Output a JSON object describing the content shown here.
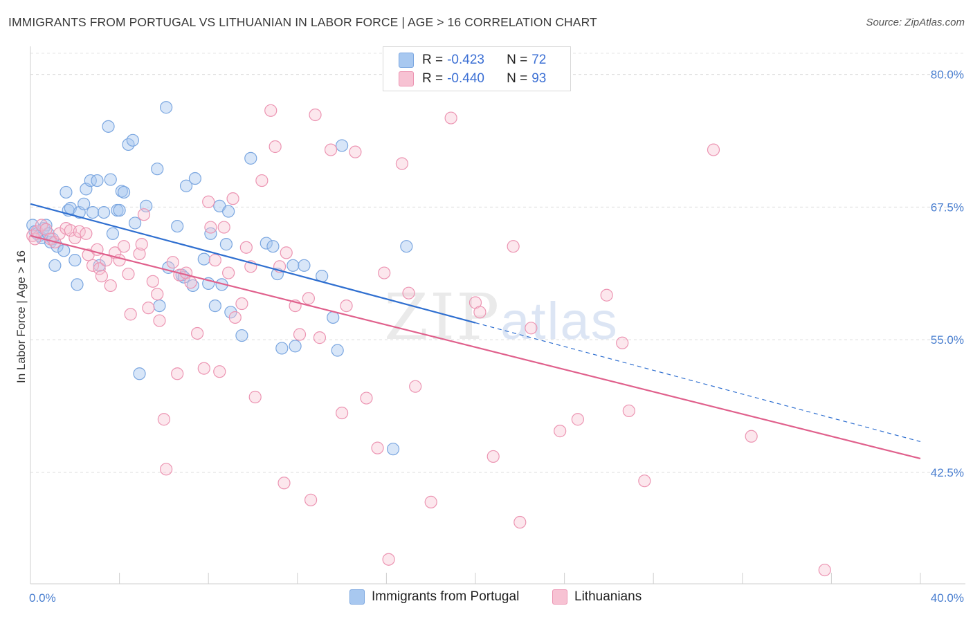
{
  "title": "IMMIGRANTS FROM PORTUGAL VS LITHUANIAN IN LABOR FORCE | AGE > 16 CORRELATION CHART",
  "source": "Source: ZipAtlas.com",
  "watermark": {
    "zip": "ZIP",
    "atlas": "atlas"
  },
  "legend": {
    "rows": [
      {
        "r_label": "R =",
        "r_value": "-0.423",
        "n_label": "N =",
        "n_value": "72",
        "color": "#a8c8f0",
        "border": "#7aa6e0"
      },
      {
        "r_label": "R =",
        "r_value": "-0.440",
        "n_label": "N =",
        "n_value": "93",
        "color": "#f7c2d3",
        "border": "#ec94b2"
      }
    ]
  },
  "bottom_legend": [
    {
      "label": "Immigrants from Portugal",
      "color": "#a8c8f0",
      "border": "#7aa6e0"
    },
    {
      "label": "Lithuanians",
      "color": "#f7c2d3",
      "border": "#ec94b2"
    }
  ],
  "chart_data": {
    "type": "scatter",
    "title": "IMMIGRANTS FROM PORTUGAL VS LITHUANIAN IN LABOR FORCE | AGE > 16 CORRELATION CHART",
    "xlabel": "",
    "ylabel": "In Labor Force | Age > 16",
    "xlim": [
      0,
      40
    ],
    "ylim": [
      32.0,
      82.0
    ],
    "x_tick_labels": [
      {
        "value": 0,
        "label": "0.0%"
      },
      {
        "value": 40,
        "label": "40.0%"
      }
    ],
    "y_ticks": [
      {
        "value": 80.0,
        "label": "80.0%"
      },
      {
        "value": 67.5,
        "label": "67.5%"
      },
      {
        "value": 55.0,
        "label": "55.0%"
      },
      {
        "value": 42.5,
        "label": "42.5%"
      }
    ],
    "grid": true,
    "series": [
      {
        "name": "Immigrants from Portugal",
        "color": "#7aa6e0",
        "fill": "rgba(168,200,240,0.45)",
        "trend": {
          "x0": 0,
          "y0": 67.8,
          "x1": 20,
          "y1": 56.6,
          "dash_to_x": 40,
          "dash_to_y": 45.4,
          "color": "#2f6fd0"
        },
        "points": [
          [
            0.1,
            65.8
          ],
          [
            0.2,
            65.2
          ],
          [
            0.3,
            65.0
          ],
          [
            0.4,
            64.8
          ],
          [
            0.5,
            64.6
          ],
          [
            0.6,
            65.5
          ],
          [
            0.7,
            65.8
          ],
          [
            0.8,
            65.0
          ],
          [
            0.9,
            64.2
          ],
          [
            1.0,
            64.5
          ],
          [
            1.1,
            62.0
          ],
          [
            1.2,
            63.8
          ],
          [
            1.5,
            63.4
          ],
          [
            1.6,
            68.9
          ],
          [
            1.7,
            67.2
          ],
          [
            1.8,
            67.4
          ],
          [
            2.0,
            62.5
          ],
          [
            2.1,
            60.2
          ],
          [
            2.2,
            67.0
          ],
          [
            2.4,
            67.8
          ],
          [
            2.5,
            69.2
          ],
          [
            2.7,
            70.0
          ],
          [
            2.8,
            67.0
          ],
          [
            3.0,
            70.0
          ],
          [
            3.1,
            62.0
          ],
          [
            3.3,
            67.0
          ],
          [
            3.5,
            75.1
          ],
          [
            3.6,
            70.1
          ],
          [
            3.7,
            65.0
          ],
          [
            3.9,
            67.2
          ],
          [
            4.0,
            67.2
          ],
          [
            4.1,
            69.0
          ],
          [
            4.2,
            68.9
          ],
          [
            4.4,
            73.4
          ],
          [
            4.6,
            73.8
          ],
          [
            4.7,
            66.0
          ],
          [
            4.9,
            51.8
          ],
          [
            5.2,
            67.6
          ],
          [
            5.7,
            71.1
          ],
          [
            5.8,
            58.2
          ],
          [
            6.1,
            76.9
          ],
          [
            6.2,
            61.8
          ],
          [
            6.6,
            65.7
          ],
          [
            6.8,
            61.1
          ],
          [
            6.9,
            60.9
          ],
          [
            7.0,
            69.5
          ],
          [
            7.3,
            60.1
          ],
          [
            7.4,
            70.2
          ],
          [
            7.8,
            62.6
          ],
          [
            8.0,
            60.3
          ],
          [
            8.1,
            65.0
          ],
          [
            8.3,
            58.2
          ],
          [
            8.5,
            67.6
          ],
          [
            8.6,
            60.2
          ],
          [
            8.9,
            67.1
          ],
          [
            8.8,
            64.0
          ],
          [
            9.0,
            57.6
          ],
          [
            9.5,
            55.4
          ],
          [
            9.9,
            72.1
          ],
          [
            10.6,
            64.1
          ],
          [
            10.9,
            63.8
          ],
          [
            11.1,
            61.2
          ],
          [
            11.3,
            54.2
          ],
          [
            11.9,
            54.4
          ],
          [
            11.8,
            62.0
          ],
          [
            12.3,
            62.0
          ],
          [
            13.1,
            61.0
          ],
          [
            13.6,
            57.1
          ],
          [
            13.8,
            54.0
          ],
          [
            14.0,
            73.3
          ],
          [
            16.9,
            63.8
          ],
          [
            16.3,
            44.7
          ]
        ]
      },
      {
        "name": "Lithuanians",
        "color": "#ec94b2",
        "fill": "rgba(247,194,211,0.40)",
        "trend": {
          "x0": 0,
          "y0": 64.8,
          "x1": 40,
          "y1": 43.8,
          "color": "#e0608c"
        },
        "points": [
          [
            0.1,
            64.8
          ],
          [
            0.2,
            64.5
          ],
          [
            0.3,
            65.2
          ],
          [
            0.5,
            65.8
          ],
          [
            0.7,
            65.4
          ],
          [
            0.9,
            64.5
          ],
          [
            1.1,
            64.2
          ],
          [
            1.3,
            65.0
          ],
          [
            1.6,
            65.5
          ],
          [
            1.8,
            65.3
          ],
          [
            2.0,
            64.6
          ],
          [
            2.2,
            65.2
          ],
          [
            2.5,
            65.0
          ],
          [
            2.6,
            63.0
          ],
          [
            2.8,
            62.0
          ],
          [
            3.0,
            63.5
          ],
          [
            3.1,
            61.7
          ],
          [
            3.2,
            61.0
          ],
          [
            3.4,
            62.5
          ],
          [
            3.6,
            60.1
          ],
          [
            3.8,
            63.2
          ],
          [
            4.0,
            62.5
          ],
          [
            4.2,
            63.8
          ],
          [
            4.4,
            61.2
          ],
          [
            4.5,
            57.4
          ],
          [
            4.9,
            63.1
          ],
          [
            5.1,
            66.8
          ],
          [
            5.3,
            58.0
          ],
          [
            5.5,
            60.5
          ],
          [
            5.7,
            59.3
          ],
          [
            5.8,
            56.8
          ],
          [
            6.0,
            47.5
          ],
          [
            6.1,
            42.8
          ],
          [
            6.4,
            62.3
          ],
          [
            6.6,
            51.8
          ],
          [
            6.7,
            61.1
          ],
          [
            7.0,
            61.3
          ],
          [
            7.2,
            60.4
          ],
          [
            7.5,
            55.6
          ],
          [
            7.8,
            52.3
          ],
          [
            8.0,
            68.0
          ],
          [
            8.1,
            65.6
          ],
          [
            8.3,
            62.5
          ],
          [
            8.5,
            52.0
          ],
          [
            8.7,
            65.6
          ],
          [
            8.9,
            61.3
          ],
          [
            9.1,
            68.3
          ],
          [
            9.2,
            57.1
          ],
          [
            9.5,
            58.4
          ],
          [
            9.7,
            63.7
          ],
          [
            9.9,
            61.9
          ],
          [
            10.1,
            49.6
          ],
          [
            10.4,
            70.0
          ],
          [
            10.8,
            76.6
          ],
          [
            11.0,
            73.2
          ],
          [
            11.2,
            61.9
          ],
          [
            11.4,
            41.5
          ],
          [
            11.5,
            63.2
          ],
          [
            11.9,
            58.2
          ],
          [
            12.1,
            55.5
          ],
          [
            12.5,
            58.9
          ],
          [
            12.6,
            39.9
          ],
          [
            12.8,
            76.2
          ],
          [
            13.0,
            55.2
          ],
          [
            13.5,
            72.9
          ],
          [
            14.0,
            48.1
          ],
          [
            14.2,
            58.2
          ],
          [
            14.6,
            72.7
          ],
          [
            15.1,
            49.5
          ],
          [
            15.6,
            44.8
          ],
          [
            15.9,
            61.3
          ],
          [
            16.1,
            34.3
          ],
          [
            16.7,
            71.6
          ],
          [
            17.0,
            59.4
          ],
          [
            17.3,
            50.6
          ],
          [
            18.0,
            39.7
          ],
          [
            18.9,
            75.9
          ],
          [
            20.0,
            58.5
          ],
          [
            20.2,
            57.6
          ],
          [
            20.8,
            44.0
          ],
          [
            21.7,
            63.8
          ],
          [
            22.0,
            37.8
          ],
          [
            22.5,
            56.1
          ],
          [
            23.8,
            46.4
          ],
          [
            24.6,
            47.5
          ],
          [
            25.9,
            59.2
          ],
          [
            26.6,
            54.7
          ],
          [
            26.9,
            48.3
          ],
          [
            27.6,
            41.7
          ],
          [
            30.7,
            72.9
          ],
          [
            32.4,
            45.9
          ],
          [
            35.7,
            33.3
          ],
          [
            5.0,
            64.0
          ]
        ]
      }
    ]
  }
}
